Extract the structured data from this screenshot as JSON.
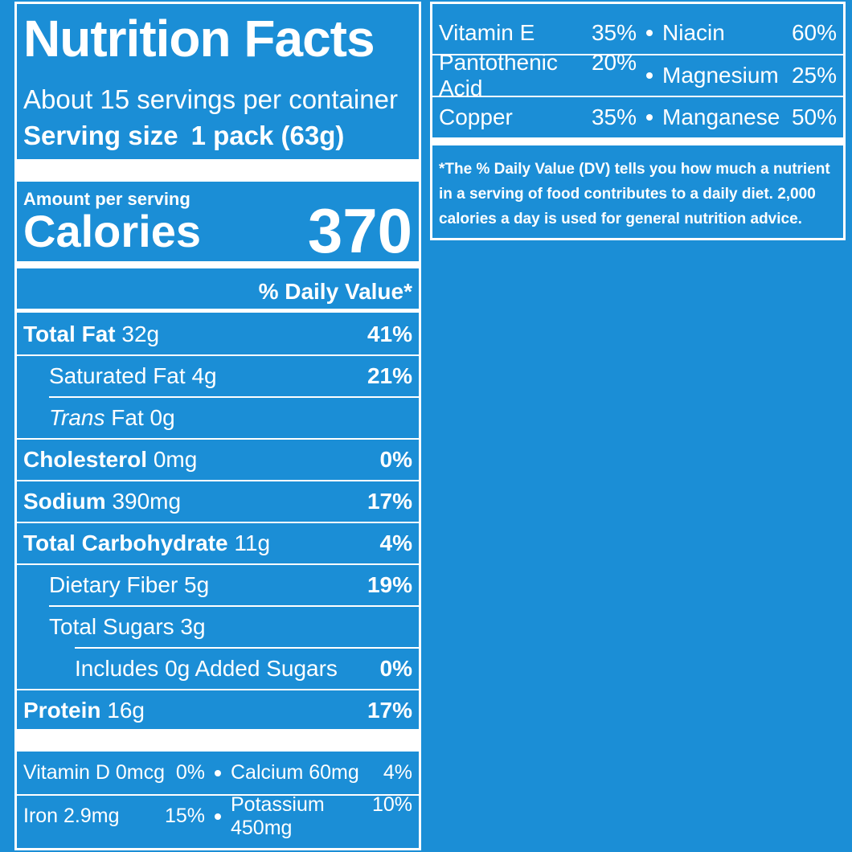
{
  "title": "Nutrition Facts",
  "servings_per_container": "About 15 servings per container",
  "serving_size": {
    "label": "Serving size",
    "value": "1 pack (63g)"
  },
  "amount_per_serving": "Amount per serving",
  "calories": {
    "label": "Calories",
    "value": "370"
  },
  "daily_value_header": "% Daily Value*",
  "nutrients": [
    {
      "name": "Total Fat",
      "amount": "32g",
      "daily_value": "41%"
    },
    {
      "name": "Saturated Fat",
      "amount": "4g",
      "daily_value": "21%"
    },
    {
      "name_italic": "Trans",
      "name": "Fat",
      "amount": "0g"
    },
    {
      "name": "Cholesterol",
      "amount": "0mg",
      "daily_value": "0%"
    },
    {
      "name": "Sodium",
      "amount": "390mg",
      "daily_value": "17%"
    },
    {
      "name": "Total Carbohydrate",
      "amount": "11g",
      "daily_value": "4%"
    },
    {
      "name": "Dietary Fiber",
      "amount": "5g",
      "daily_value": "19%"
    },
    {
      "name": "Total Sugars",
      "amount": "3g"
    },
    {
      "name": "Includes 0g Added Sugars",
      "daily_value": "0%"
    },
    {
      "name": "Protein",
      "amount": "16g",
      "daily_value": "17%"
    }
  ],
  "vitamins_left": [
    [
      {
        "name": "Vitamin D 0mcg",
        "daily_value": "0%"
      },
      {
        "name": "Calcium 60mg",
        "daily_value": "4%"
      }
    ],
    [
      {
        "name": "Iron 2.9mg",
        "daily_value": "15%"
      },
      {
        "name": "Potassium 450mg",
        "daily_value": "10%"
      }
    ]
  ],
  "vitamins_right": [
    [
      {
        "name": "Vitamin E",
        "daily_value": "35%"
      },
      {
        "name": "Niacin",
        "daily_value": "60%"
      }
    ],
    [
      {
        "name": "Pantothenic Acid",
        "daily_value": "20%"
      },
      {
        "name": "Magnesium",
        "daily_value": "25%"
      }
    ],
    [
      {
        "name": "Copper",
        "daily_value": "35%"
      },
      {
        "name": "Manganese",
        "daily_value": "50%"
      }
    ]
  ],
  "footnote": "*The % Daily Value (DV) tells you how much a nutrient in a serving of food contributes to a daily diet. 2,000 calories a day is used for general nutrition advice."
}
